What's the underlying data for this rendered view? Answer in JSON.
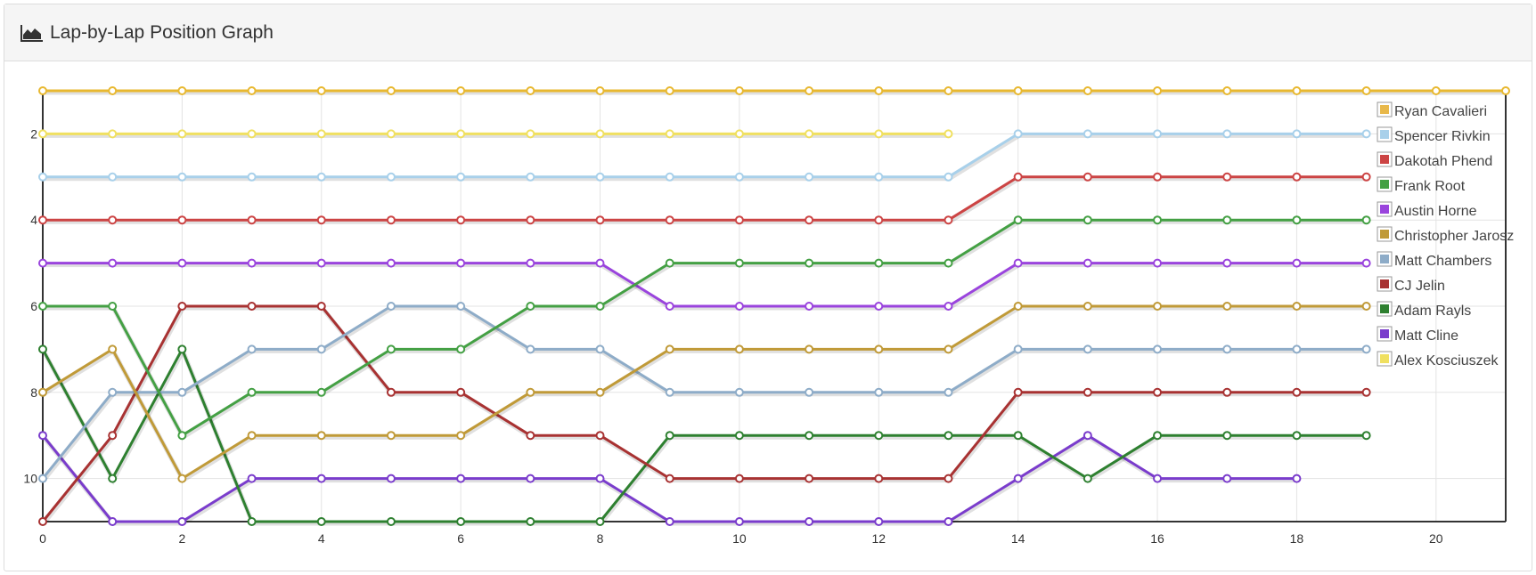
{
  "panel": {
    "title": "Lap-by-Lap Position Graph",
    "icon": "area-chart-icon"
  },
  "chart_data": {
    "type": "line",
    "title": "",
    "xlabel": "",
    "ylabel": "",
    "xlim": [
      0,
      21
    ],
    "ylim": [
      1,
      11
    ],
    "y_inverted": true,
    "x_ticks": [
      0,
      2,
      4,
      6,
      8,
      10,
      12,
      14,
      16,
      18,
      20
    ],
    "y_ticks": [
      2,
      4,
      6,
      8,
      10
    ],
    "grid": true,
    "legend_position": "top-right",
    "series": [
      {
        "name": "",
        "color": "#e8b830",
        "x": [
          0,
          1,
          2,
          3,
          4,
          5,
          6,
          7,
          8,
          9,
          10,
          11,
          12,
          13,
          14,
          15,
          16,
          17,
          18,
          19,
          20,
          21
        ],
        "values": [
          1,
          1,
          1,
          1,
          1,
          1,
          1,
          1,
          1,
          1,
          1,
          1,
          1,
          1,
          1,
          1,
          1,
          1,
          1,
          1,
          1,
          1
        ]
      },
      {
        "name": "Ryan Cavalieri",
        "color": "#e8b84a",
        "x": [],
        "values": []
      },
      {
        "name": "Spencer Rivkin",
        "color": "#a8d0ea",
        "x": [
          0,
          1,
          2,
          3,
          4,
          5,
          6,
          7,
          8,
          9,
          10,
          11,
          12,
          13,
          14,
          15,
          16,
          17,
          18,
          19
        ],
        "values": [
          3,
          3,
          3,
          3,
          3,
          3,
          3,
          3,
          3,
          3,
          3,
          3,
          3,
          3,
          2,
          2,
          2,
          2,
          2,
          2
        ]
      },
      {
        "name": "Dakotah Phend",
        "color": "#cc4444",
        "x": [
          0,
          1,
          2,
          3,
          4,
          5,
          6,
          7,
          8,
          9,
          10,
          11,
          12,
          13,
          14,
          15,
          16,
          17,
          18,
          19
        ],
        "values": [
          4,
          4,
          4,
          4,
          4,
          4,
          4,
          4,
          4,
          4,
          4,
          4,
          4,
          4,
          3,
          3,
          3,
          3,
          3,
          3
        ]
      },
      {
        "name": "Frank Root",
        "color": "#44a044",
        "x": [
          0,
          1,
          2,
          3,
          4,
          5,
          6,
          7,
          8,
          9,
          10,
          11,
          12,
          13,
          14,
          15,
          16,
          17,
          18,
          19
        ],
        "values": [
          6,
          6,
          9,
          8,
          8,
          7,
          7,
          6,
          6,
          5,
          5,
          5,
          5,
          5,
          4,
          4,
          4,
          4,
          4,
          4
        ]
      },
      {
        "name": "Austin Horne",
        "color": "#9a44dd",
        "x": [
          0,
          1,
          2,
          3,
          4,
          5,
          6,
          7,
          8,
          9,
          10,
          11,
          12,
          13,
          14,
          15,
          16,
          17,
          18,
          19
        ],
        "values": [
          5,
          5,
          5,
          5,
          5,
          5,
          5,
          5,
          5,
          6,
          6,
          6,
          6,
          6,
          5,
          5,
          5,
          5,
          5,
          5
        ]
      },
      {
        "name": "Christopher Jarosz",
        "color": "#c09a38",
        "x": [
          0,
          1,
          2,
          3,
          4,
          5,
          6,
          7,
          8,
          9,
          10,
          11,
          12,
          13,
          14,
          15,
          16,
          17,
          18,
          19
        ],
        "values": [
          8,
          7,
          10,
          9,
          9,
          9,
          9,
          8,
          8,
          7,
          7,
          7,
          7,
          7,
          6,
          6,
          6,
          6,
          6,
          6
        ]
      },
      {
        "name": "Matt Chambers",
        "color": "#8eacc8",
        "x": [
          0,
          1,
          2,
          3,
          4,
          5,
          6,
          7,
          8,
          9,
          10,
          11,
          12,
          13,
          14,
          15,
          16,
          17,
          18,
          19
        ],
        "values": [
          10,
          8,
          8,
          7,
          7,
          6,
          6,
          7,
          7,
          8,
          8,
          8,
          8,
          8,
          7,
          7,
          7,
          7,
          7,
          7
        ]
      },
      {
        "name": "CJ Jelin",
        "color": "#a83232",
        "x": [
          0,
          1,
          2,
          3,
          4,
          5,
          6,
          7,
          8,
          9,
          10,
          11,
          12,
          13,
          14,
          15,
          16,
          17,
          18,
          19
        ],
        "values": [
          11,
          9,
          6,
          6,
          6,
          8,
          8,
          9,
          9,
          10,
          10,
          10,
          10,
          10,
          8,
          8,
          8,
          8,
          8,
          8
        ]
      },
      {
        "name": "Adam Rayls",
        "color": "#2e8030",
        "x": [
          0,
          1,
          2,
          3,
          4,
          5,
          6,
          7,
          8,
          9,
          10,
          11,
          12,
          13,
          14,
          15,
          16,
          17,
          18,
          19
        ],
        "values": [
          7,
          10,
          7,
          11,
          11,
          11,
          11,
          11,
          11,
          9,
          9,
          9,
          9,
          9,
          9,
          10,
          9,
          9,
          9,
          9
        ]
      },
      {
        "name": "Matt Cline",
        "color": "#7a3ccc",
        "x": [
          0,
          1,
          2,
          3,
          4,
          5,
          6,
          7,
          8,
          9,
          10,
          11,
          12,
          13,
          14,
          15,
          16,
          17,
          18
        ],
        "values": [
          9,
          11,
          11,
          10,
          10,
          10,
          10,
          10,
          10,
          11,
          11,
          11,
          11,
          11,
          10,
          9,
          10,
          10,
          10
        ]
      },
      {
        "name": "Alex Kosciuszek",
        "color": "#f0e060",
        "x": [
          0,
          1,
          2,
          3,
          4,
          5,
          6,
          7,
          8,
          9,
          10,
          11,
          12,
          13
        ],
        "values": [
          2,
          2,
          2,
          2,
          2,
          2,
          2,
          2,
          2,
          2,
          2,
          2,
          2,
          2
        ]
      }
    ]
  }
}
